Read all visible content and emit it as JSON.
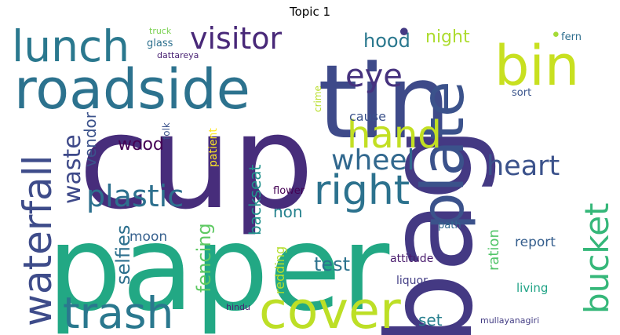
{
  "title": "Topic 1",
  "words": [
    {
      "text": "cup",
      "color": "#472d7b"
    },
    {
      "text": "paper",
      "color": "#22a884"
    },
    {
      "text": "bag",
      "color": "#443983"
    },
    {
      "text": "tin",
      "color": "#3e4a89"
    },
    {
      "text": "roadside",
      "color": "#2c728e"
    },
    {
      "text": "plate",
      "color": "#3b528b"
    },
    {
      "text": "cover",
      "color": "#bddf26"
    },
    {
      "text": "trash",
      "color": "#2a788e"
    },
    {
      "text": "bin",
      "color": "#c8e020"
    },
    {
      "text": "waterfall",
      "color": "#3e4c8a"
    },
    {
      "text": "lunch",
      "color": "#2a788e"
    },
    {
      "text": "right",
      "color": "#2c728e"
    },
    {
      "text": "bucket",
      "color": "#35b779"
    },
    {
      "text": "visitor",
      "color": "#482878"
    },
    {
      "text": "hand",
      "color": "#c2df23"
    },
    {
      "text": "plastic",
      "color": "#2d708e"
    },
    {
      "text": "eye",
      "color": "#46327e"
    },
    {
      "text": "heart",
      "color": "#3b528b"
    },
    {
      "text": "wheel",
      "color": "#31688e"
    },
    {
      "text": "waste",
      "color": "#3e4989"
    },
    {
      "text": "selfies",
      "color": "#2d708e"
    },
    {
      "text": "fencing",
      "color": "#5ec962"
    },
    {
      "text": "hood",
      "color": "#2a788e"
    },
    {
      "text": "night",
      "color": "#addc30"
    },
    {
      "text": "backseat",
      "color": "#21918c"
    },
    {
      "text": "wood",
      "color": "#440154"
    },
    {
      "text": "vendor",
      "color": "#3b528b"
    },
    {
      "text": "test",
      "color": "#2c728e"
    },
    {
      "text": "non",
      "color": "#26828e"
    },
    {
      "text": "set",
      "color": "#277f8e"
    },
    {
      "text": "ration",
      "color": "#52c569"
    },
    {
      "text": "moon",
      "color": "#355f8d"
    },
    {
      "text": "report",
      "color": "#355e8d"
    },
    {
      "text": "redding",
      "color": "#b5de2b"
    },
    {
      "text": "cause",
      "color": "#3b528b"
    },
    {
      "text": "living",
      "color": "#20a386"
    },
    {
      "text": "sort",
      "color": "#3a548c"
    },
    {
      "text": "patient",
      "color": "#fde725"
    },
    {
      "text": "attitude",
      "color": "#481a6c"
    },
    {
      "text": "liquor",
      "color": "#433e85"
    },
    {
      "text": "glass",
      "color": "#2d708e"
    },
    {
      "text": "path",
      "color": "#31688e"
    },
    {
      "text": "flower",
      "color": "#440154"
    },
    {
      "text": "crime",
      "color": "#b8de29"
    },
    {
      "text": "folk",
      "color": "#3b528b"
    },
    {
      "text": "fern",
      "color": "#2e6e8e"
    },
    {
      "text": "truck",
      "color": "#7ad151"
    },
    {
      "text": "dattareya",
      "color": "#482173"
    },
    {
      "text": "hindu",
      "color": "#482576"
    },
    {
      "text": "mullayanagiri",
      "color": "#433d84"
    },
    {
      "text": "",
      "color": "#a5db36"
    },
    {
      "text": "",
      "color": "#443a83"
    }
  ]
}
